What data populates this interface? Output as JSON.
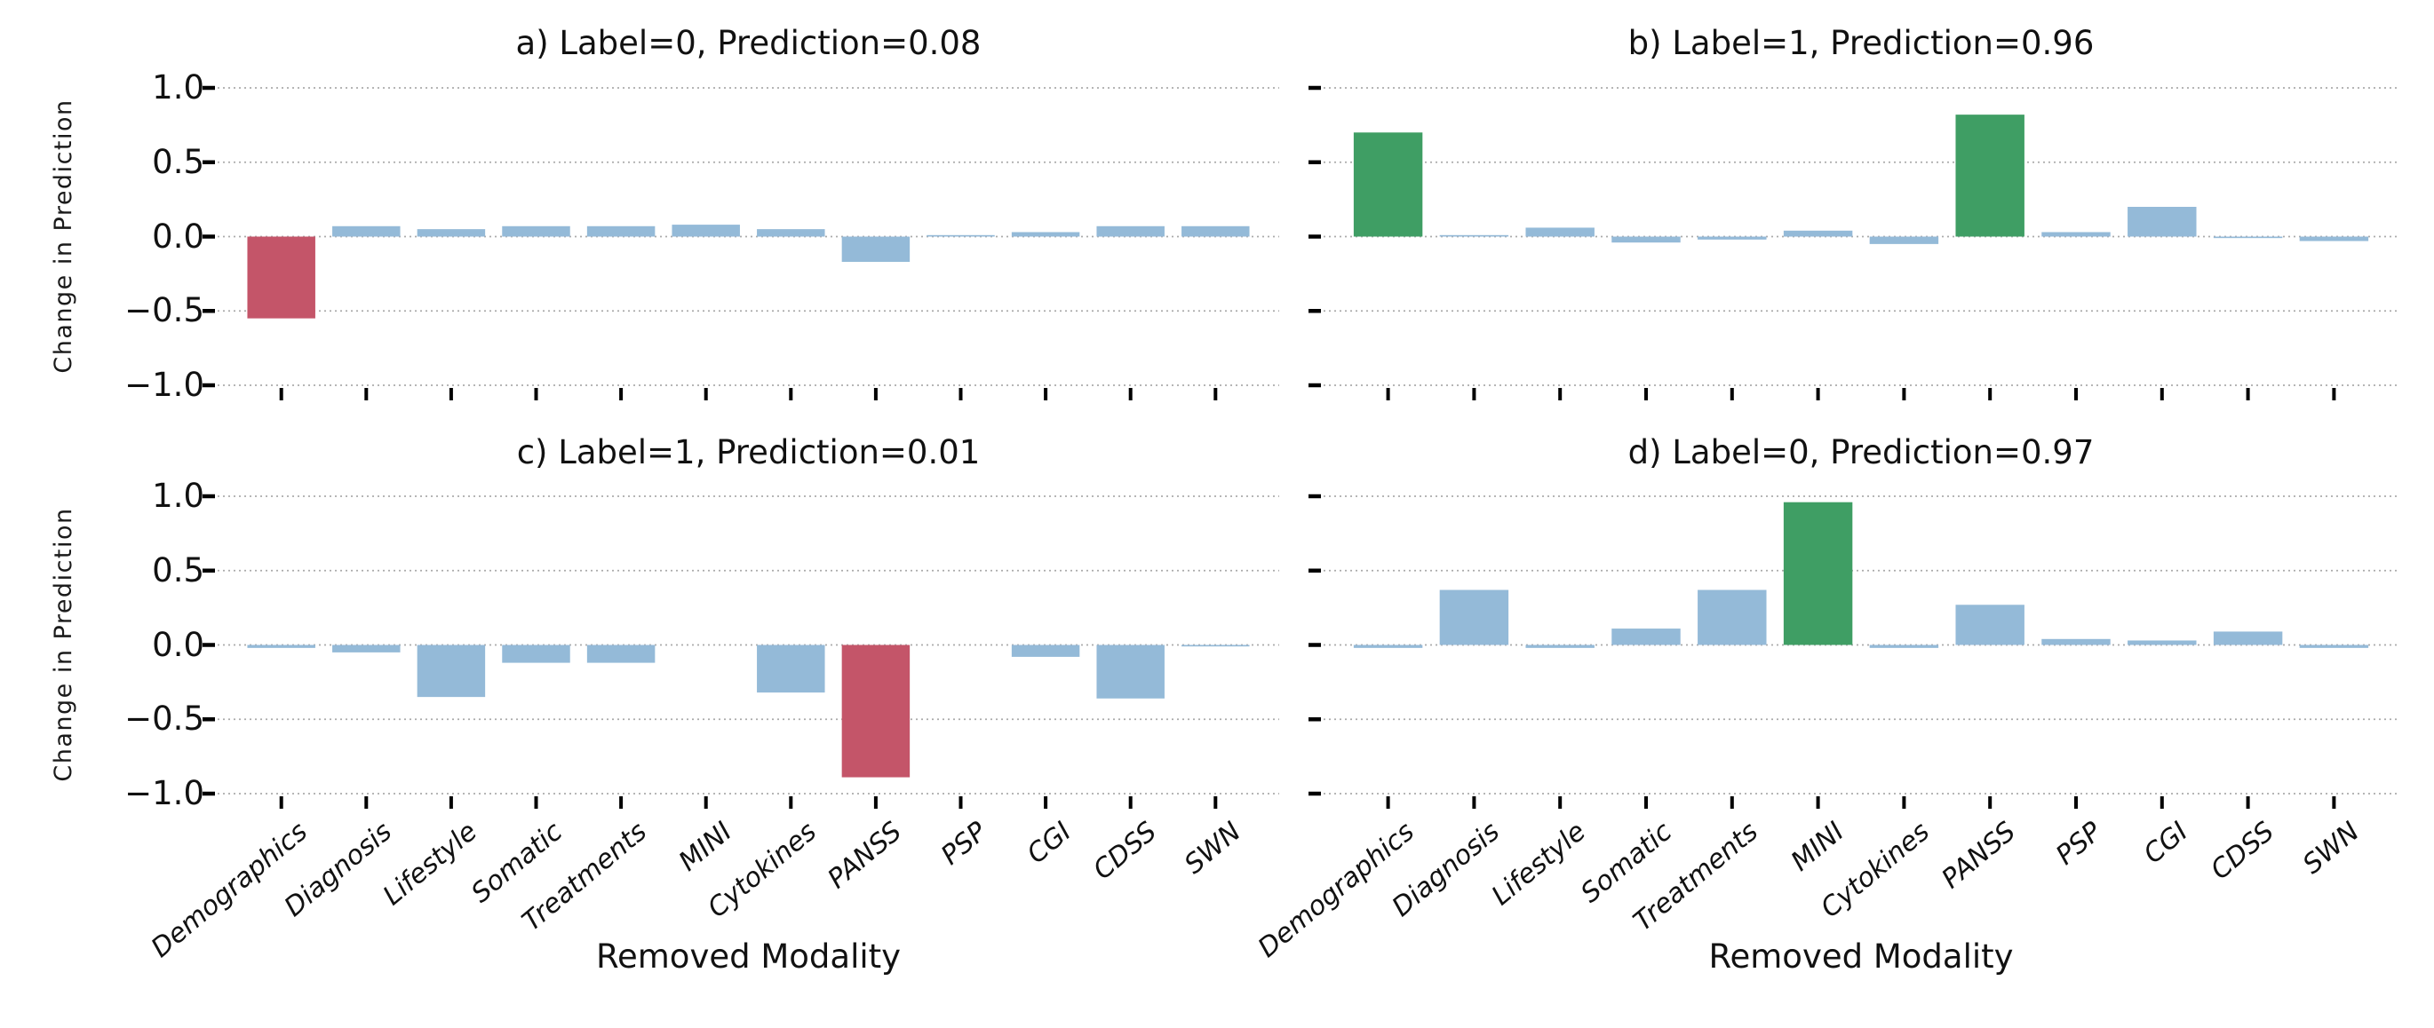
{
  "figure": {
    "background": "#ffffff"
  },
  "chart_data": {
    "type": "bar",
    "layout": "2x2 grid of subplots, shared category axis, horizontal dashed gridlines, no solid spines",
    "categories": [
      "Demographics",
      "Diagnosis",
      "Lifestyle",
      "Somatic",
      "Treatments",
      "MINI",
      "Cytokines",
      "PANSS",
      "PSP",
      "CGI",
      "CDSS",
      "SWN"
    ],
    "xlabel": "Removed Modality",
    "ylabel": "Change in Prediction",
    "ylim": [
      -1.0,
      1.0
    ],
    "ytick_labels": [
      "1.0",
      "0.5",
      "0.0",
      "−0.5",
      "−1.0"
    ],
    "ytick_values": [
      1.0,
      0.5,
      0.0,
      -0.5,
      -1.0
    ],
    "grid": "horizontal dashed gray lines at each y tick",
    "colors": {
      "blue": "#94bad8",
      "red": "#c45569",
      "green": "#3f9e64",
      "gridline": "#ababab",
      "tick": "#000000",
      "text": "#111111"
    },
    "panels": [
      {
        "id": "a",
        "title": "a) Label=0, Prediction=0.08",
        "values": [
          -0.55,
          0.07,
          0.05,
          0.07,
          0.07,
          0.08,
          0.05,
          -0.17,
          0.01,
          0.03,
          0.07,
          0.07
        ],
        "bar_colors": [
          "red",
          "blue",
          "blue",
          "blue",
          "blue",
          "blue",
          "blue",
          "blue",
          "blue",
          "blue",
          "blue",
          "blue"
        ]
      },
      {
        "id": "b",
        "title": "b) Label=1, Prediction=0.96",
        "values": [
          0.7,
          0.01,
          0.06,
          -0.04,
          -0.02,
          0.04,
          -0.05,
          0.82,
          0.03,
          0.2,
          -0.01,
          -0.03
        ],
        "bar_colors": [
          "green",
          "blue",
          "blue",
          "blue",
          "blue",
          "blue",
          "blue",
          "green",
          "blue",
          "blue",
          "blue",
          "blue"
        ]
      },
      {
        "id": "c",
        "title": "c) Label=1, Prediction=0.01",
        "values": [
          -0.02,
          -0.05,
          -0.35,
          -0.12,
          -0.12,
          0.0,
          -0.32,
          -0.89,
          0.0,
          -0.08,
          -0.36,
          -0.01
        ],
        "bar_colors": [
          "blue",
          "blue",
          "blue",
          "blue",
          "blue",
          "blue",
          "blue",
          "red",
          "blue",
          "blue",
          "blue",
          "blue"
        ]
      },
      {
        "id": "d",
        "title": "d) Label=0, Prediction=0.97",
        "values": [
          -0.02,
          0.37,
          -0.02,
          0.11,
          0.37,
          0.96,
          -0.02,
          0.27,
          0.04,
          0.03,
          0.09,
          -0.02
        ],
        "bar_colors": [
          "blue",
          "blue",
          "blue",
          "blue",
          "blue",
          "green",
          "blue",
          "blue",
          "blue",
          "blue",
          "blue",
          "blue"
        ]
      }
    ]
  }
}
